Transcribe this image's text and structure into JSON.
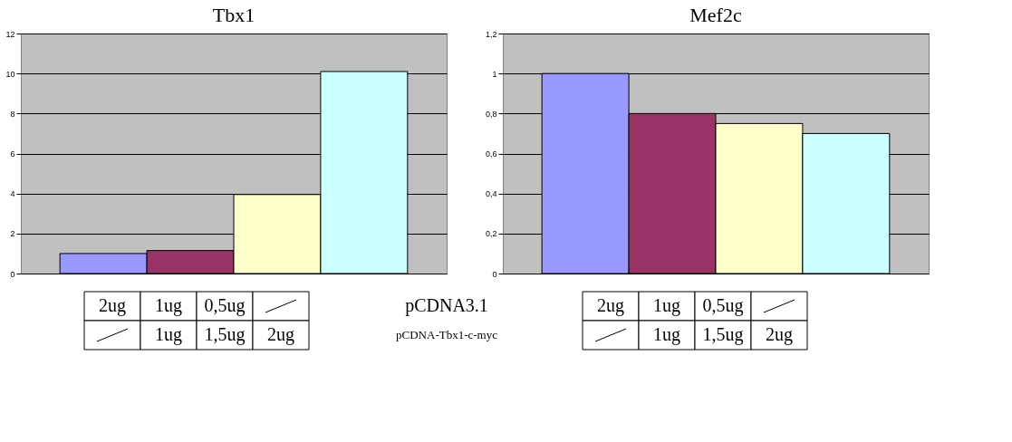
{
  "chart_data": [
    {
      "type": "bar",
      "title": "Tbx1",
      "categories": [
        null,
        null,
        null,
        null
      ],
      "values": [
        1,
        1.15,
        3.95,
        10.1
      ],
      "colors": [
        "#9999ff",
        "#993366",
        "#ffffcc",
        "#ccffff"
      ],
      "ylim": [
        0,
        12
      ],
      "yticks": [
        0,
        2,
        4,
        6,
        8,
        10,
        12
      ],
      "grid": "y",
      "annotations": [
        "2ug",
        "1ug",
        "0,5ug",
        "1ug",
        "1,5ug",
        "2ug",
        "pCDNA3.1",
        "pCDNA-Tbx1-c-myc"
      ]
    },
    {
      "type": "bar",
      "title": "Mef2c",
      "categories": [
        null,
        null,
        null,
        null
      ],
      "values": [
        1,
        0.8,
        0.75,
        0.7
      ],
      "colors": [
        "#9999ff",
        "#993366",
        "#ffffcc",
        "#ccffff"
      ],
      "ylim": [
        0,
        1.2
      ],
      "yticks": [
        0,
        {
          "value": 0.2,
          "label": "0,2"
        },
        {
          "value": 0.4,
          "label": "0,4"
        },
        {
          "value": 0.6,
          "label": "0,6"
        },
        {
          "value": 0.8,
          "label": "0,8"
        },
        1,
        {
          "value": 1.2,
          "label": "1,2"
        }
      ],
      "grid": "y",
      "annotations": [
        "2ug",
        "1ug",
        "0,5ug",
        "1ug",
        "1,5ug",
        "2ug"
      ]
    }
  ]
}
